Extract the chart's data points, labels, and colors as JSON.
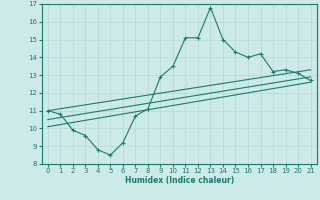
{
  "xlabel": "Humidex (Indice chaleur)",
  "xlim": [
    -0.5,
    21.5
  ],
  "ylim": [
    8,
    17
  ],
  "xticks": [
    0,
    1,
    2,
    3,
    4,
    5,
    6,
    7,
    8,
    9,
    10,
    11,
    12,
    13,
    14,
    15,
    16,
    17,
    18,
    19,
    20,
    21
  ],
  "yticks": [
    8,
    9,
    10,
    11,
    12,
    13,
    14,
    15,
    16,
    17
  ],
  "bg_color": "#cceae8",
  "line_color": "#1a7a6e",
  "main_line_x": [
    0,
    1,
    2,
    3,
    4,
    5,
    6,
    7,
    8,
    9,
    10,
    11,
    12,
    13,
    14,
    15,
    16,
    17,
    18,
    19,
    20,
    21
  ],
  "main_line_y": [
    11.0,
    10.8,
    9.9,
    9.6,
    8.8,
    8.5,
    9.2,
    10.7,
    11.1,
    12.9,
    13.5,
    15.1,
    15.1,
    16.8,
    15.0,
    14.3,
    14.0,
    14.2,
    13.2,
    13.3,
    13.1,
    12.7
  ],
  "trend_lines": [
    {
      "x": [
        0,
        21
      ],
      "y": [
        11.0,
        13.3
      ]
    },
    {
      "x": [
        0,
        21
      ],
      "y": [
        10.5,
        12.9
      ]
    },
    {
      "x": [
        0,
        21
      ],
      "y": [
        10.1,
        12.6
      ]
    }
  ]
}
